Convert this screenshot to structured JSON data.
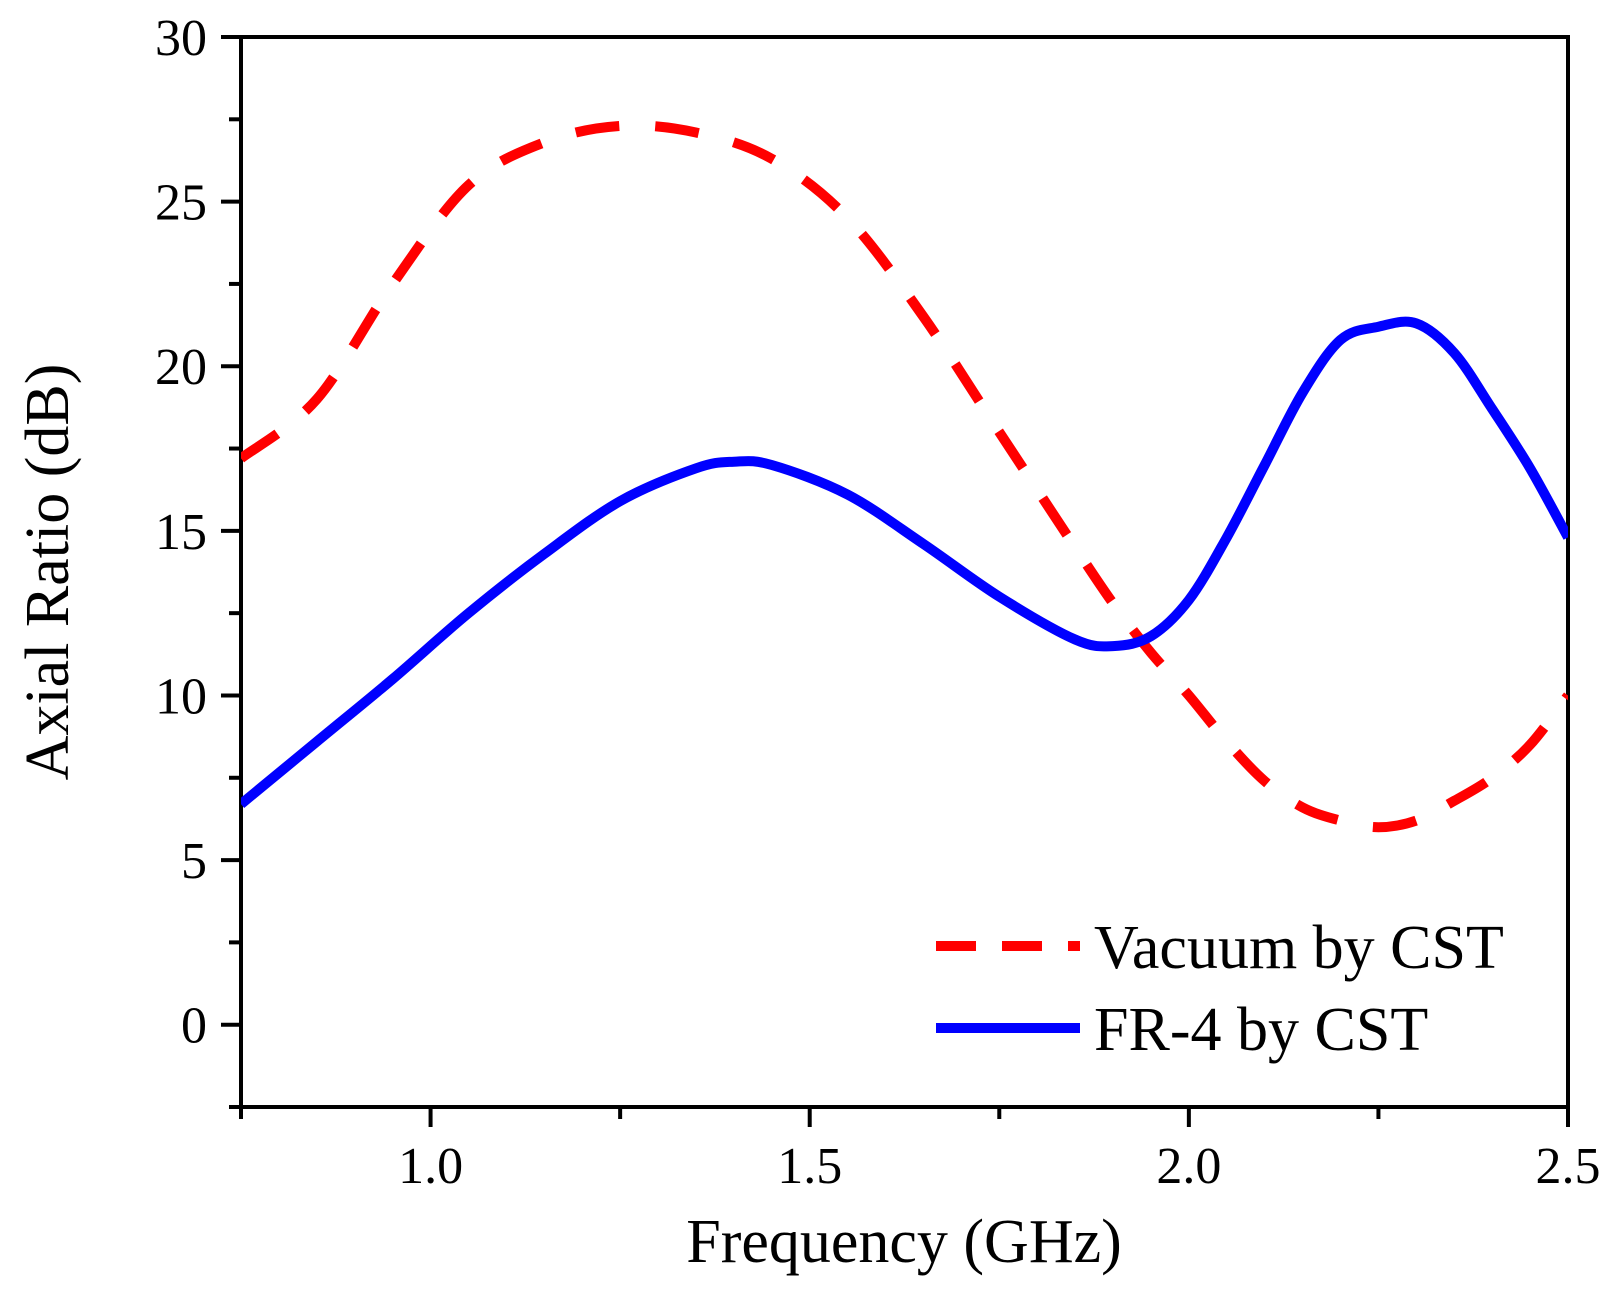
{
  "chart_data": {
    "type": "line",
    "title": "",
    "xlabel": "Frequency (GHz)",
    "ylabel": "Axial Ratio (dB)",
    "xlim": [
      0.75,
      2.5
    ],
    "ylim": [
      -2.5,
      30
    ],
    "xticks": [
      1.0,
      1.5,
      2.0,
      2.5
    ],
    "xtick_labels": [
      "1.0",
      "1.5",
      "2.0",
      "2.5"
    ],
    "yticks": [
      0,
      5,
      10,
      15,
      20,
      25,
      30
    ],
    "ytick_labels": [
      "0",
      "5",
      "10",
      "15",
      "20",
      "25",
      "30"
    ],
    "grid": false,
    "legend_position": "bottom-right",
    "series": [
      {
        "name": "Vacuum by CST",
        "style": "dashed",
        "color": "#ff0000",
        "x": [
          0.75,
          0.85,
          0.95,
          1.05,
          1.15,
          1.25,
          1.35,
          1.45,
          1.55,
          1.65,
          1.75,
          1.85,
          1.9,
          1.95,
          2.0,
          2.05,
          2.1,
          2.15,
          2.2,
          2.25,
          2.3,
          2.35,
          2.4,
          2.45,
          2.5
        ],
        "y": [
          17.2,
          19.0,
          22.5,
          25.5,
          26.8,
          27.3,
          27.1,
          26.3,
          24.5,
          21.5,
          18.0,
          14.5,
          12.8,
          11.3,
          10.0,
          8.6,
          7.4,
          6.6,
          6.2,
          6.0,
          6.2,
          6.8,
          7.5,
          8.5,
          10.0
        ]
      },
      {
        "name": "FR-4 by CST",
        "style": "solid",
        "color": "#0000ff",
        "x": [
          0.75,
          0.85,
          0.95,
          1.05,
          1.15,
          1.25,
          1.35,
          1.4,
          1.45,
          1.55,
          1.65,
          1.75,
          1.85,
          1.9,
          1.95,
          2.0,
          2.05,
          2.1,
          2.15,
          2.2,
          2.25,
          2.3,
          2.35,
          2.4,
          2.45,
          2.5
        ],
        "y": [
          6.7,
          8.6,
          10.5,
          12.5,
          14.3,
          15.9,
          16.9,
          17.1,
          17.0,
          16.1,
          14.6,
          13.0,
          11.7,
          11.5,
          11.8,
          12.9,
          14.8,
          17.0,
          19.2,
          20.8,
          21.2,
          21.3,
          20.4,
          18.7,
          16.9,
          14.8
        ]
      }
    ]
  }
}
